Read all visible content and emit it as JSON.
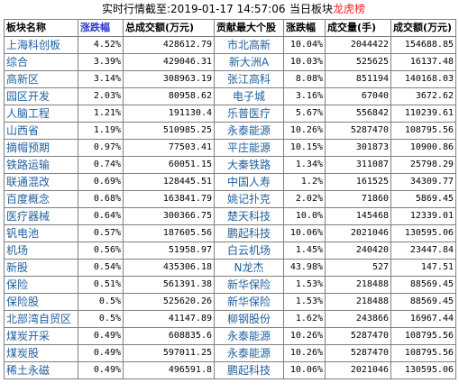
{
  "header": {
    "time_label": "实时行情截至:2019-01-17 14:57:06",
    "board_prefix": "当日板块",
    "board_highlight": "龙虎榜"
  },
  "columns": [
    "板块名称",
    "涨跌幅",
    "总成交额(万元)",
    "贡献最大个股",
    "涨跌幅",
    "成交量(手)",
    "成交额(万元)"
  ],
  "rows": [
    [
      "上海科创板",
      "4.52%",
      "428612.79",
      "市北高新",
      "10.04%",
      "2044422",
      "154688.85"
    ],
    [
      "综合",
      "3.39%",
      "429046.31",
      "新大洲A",
      "10.03%",
      "525625",
      "16137.48"
    ],
    [
      "高新区",
      "3.14%",
      "308963.19",
      "张江高科",
      "8.08%",
      "851194",
      "140168.03"
    ],
    [
      "园区开发",
      "2.03%",
      "80958.62",
      "电子城",
      "3.16%",
      "67040",
      "3672.62"
    ],
    [
      "人脑工程",
      "1.21%",
      "191130.4",
      "乐普医疗",
      "5.67%",
      "556842",
      "110239.61"
    ],
    [
      "山西省",
      "1.19%",
      "510985.25",
      "永泰能源",
      "10.26%",
      "5287470",
      "108795.56"
    ],
    [
      "摘帽预期",
      "0.97%",
      "77503.41",
      "平庄能源",
      "10.15%",
      "301873",
      "10900.86"
    ],
    [
      "铁路运输",
      "0.74%",
      "60051.15",
      "大秦铁路",
      "1.34%",
      "311087",
      "25798.29"
    ],
    [
      "联通混改",
      "0.69%",
      "128445.51",
      "中国人寿",
      "1.2%",
      "161525",
      "34309.77"
    ],
    [
      "百度概念",
      "0.68%",
      "163841.79",
      "姚记扑克",
      "2.02%",
      "71860",
      "5869.45"
    ],
    [
      "医疗器械",
      "0.64%",
      "300366.75",
      "楚天科技",
      "10.0%",
      "145468",
      "12339.01"
    ],
    [
      "钒电池",
      "0.57%",
      "187605.56",
      "鹏起科技",
      "10.06%",
      "2021046",
      "130595.06"
    ],
    [
      "机场",
      "0.56%",
      "51958.97",
      "白云机场",
      "1.45%",
      "240420",
      "23447.84"
    ],
    [
      "新股",
      "0.54%",
      "435306.18",
      "N龙杰",
      "43.98%",
      "527",
      "147.51"
    ],
    [
      "保险",
      "0.51%",
      "561391.38",
      "新华保险",
      "1.53%",
      "218488",
      "88569.45"
    ],
    [
      "保险股",
      "0.5%",
      "525620.26",
      "新华保险",
      "1.53%",
      "218488",
      "88569.45"
    ],
    [
      "北部湾自贸区",
      "0.5%",
      "41147.89",
      "柳钢股份",
      "1.62%",
      "243866",
      "16967.44"
    ],
    [
      "煤炭开采",
      "0.49%",
      "608835.6",
      "永泰能源",
      "10.26%",
      "5287470",
      "108795.56"
    ],
    [
      "煤炭股",
      "0.49%",
      "597011.25",
      "永泰能源",
      "10.26%",
      "5287470",
      "108795.56"
    ],
    [
      "稀土永磁",
      "0.49%",
      "496591.8",
      "鹏起科技",
      "10.06%",
      "2021046",
      "130595.06"
    ]
  ],
  "colors": {
    "name_text": "#1f5f9f",
    "highlight": "#ff2020",
    "grid": "#7f7f7f",
    "header_blue": "#2a3cc9"
  }
}
